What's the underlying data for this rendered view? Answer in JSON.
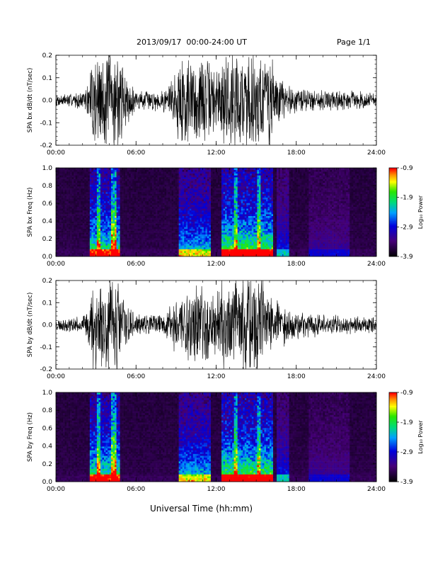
{
  "header": {
    "title": "2013/09/17  00:00-24:00 UT",
    "page": "Page 1/1"
  },
  "footer": {
    "xlabel": "Universal Time (hh:mm)"
  },
  "chart_data": [
    {
      "type": "line",
      "ylabel": "SPA bx dB/dt (nT/sec)",
      "ylim": [
        -0.2,
        0.2
      ],
      "yticks": [
        "-0.2",
        "-0.1",
        "0.0",
        "0.1",
        "0.2"
      ],
      "xticks": [
        "00:00",
        "06:00",
        "12:00",
        "18:00",
        "24:00"
      ],
      "x_hours": [
        0,
        6,
        12,
        18,
        24
      ],
      "seed": 7,
      "envelope": [
        [
          0,
          0.03
        ],
        [
          2,
          0.04
        ],
        [
          2.5,
          0.09
        ],
        [
          2.7,
          0.25
        ],
        [
          4.6,
          0.25
        ],
        [
          5.3,
          0.12
        ],
        [
          6,
          0.05
        ],
        [
          8,
          0.05
        ],
        [
          9,
          0.15
        ],
        [
          9.3,
          0.25
        ],
        [
          11.5,
          0.2
        ],
        [
          12,
          0.15
        ],
        [
          12.5,
          0.25
        ],
        [
          16,
          0.25
        ],
        [
          16.5,
          0.12
        ],
        [
          18,
          0.06
        ],
        [
          21,
          0.05
        ],
        [
          24,
          0.04
        ]
      ]
    },
    {
      "type": "heatmap",
      "ylabel": "SPA bx Freq (Hz)",
      "ylim": [
        0,
        1
      ],
      "yticks": [
        "0.0",
        "0.2",
        "0.4",
        "0.6",
        "0.8",
        "1.0"
      ],
      "xticks": [
        "00:00",
        "06:00",
        "12:00",
        "18:00",
        "24:00"
      ],
      "x_hours": [
        0,
        6,
        12,
        18,
        24
      ],
      "colorbar": {
        "label": "Log₁₀ Power",
        "ticks": [
          "-0.9",
          "-1.9",
          "-2.9",
          "-3.9"
        ],
        "range": [
          -3.9,
          -0.9
        ]
      },
      "seed": 11
    },
    {
      "type": "line",
      "ylabel": "SPA by dB/dt (nT/sec)",
      "ylim": [
        -0.2,
        0.2
      ],
      "yticks": [
        "-0.2",
        "-0.1",
        "0.0",
        "0.1",
        "0.2"
      ],
      "xticks": [
        "00:00",
        "06:00",
        "12:00",
        "18:00",
        "24:00"
      ],
      "x_hours": [
        0,
        6,
        12,
        18,
        24
      ],
      "seed": 23,
      "envelope": [
        [
          0,
          0.03
        ],
        [
          2,
          0.04
        ],
        [
          2.5,
          0.1
        ],
        [
          2.8,
          0.25
        ],
        [
          4.6,
          0.25
        ],
        [
          5.4,
          0.1
        ],
        [
          6,
          0.05
        ],
        [
          8,
          0.05
        ],
        [
          9,
          0.15
        ],
        [
          9.5,
          0.22
        ],
        [
          11.5,
          0.18
        ],
        [
          12,
          0.15
        ],
        [
          12.5,
          0.25
        ],
        [
          16,
          0.25
        ],
        [
          16.5,
          0.12
        ],
        [
          18,
          0.07
        ],
        [
          21,
          0.05
        ],
        [
          24,
          0.04
        ]
      ]
    },
    {
      "type": "heatmap",
      "ylabel": "SPA by Freq (Hz)",
      "ylim": [
        0,
        1
      ],
      "yticks": [
        "0.0",
        "0.2",
        "0.4",
        "0.6",
        "0.8",
        "1.0"
      ],
      "xticks": [
        "00:00",
        "06:00",
        "12:00",
        "18:00",
        "24:00"
      ],
      "x_hours": [
        0,
        6,
        12,
        18,
        24
      ],
      "colorbar": {
        "label": "Log₁₀ Power",
        "ticks": [
          "-0.9",
          "-1.9",
          "-2.9",
          "-3.9"
        ],
        "range": [
          -3.9,
          -0.9
        ]
      },
      "seed": 31
    }
  ]
}
